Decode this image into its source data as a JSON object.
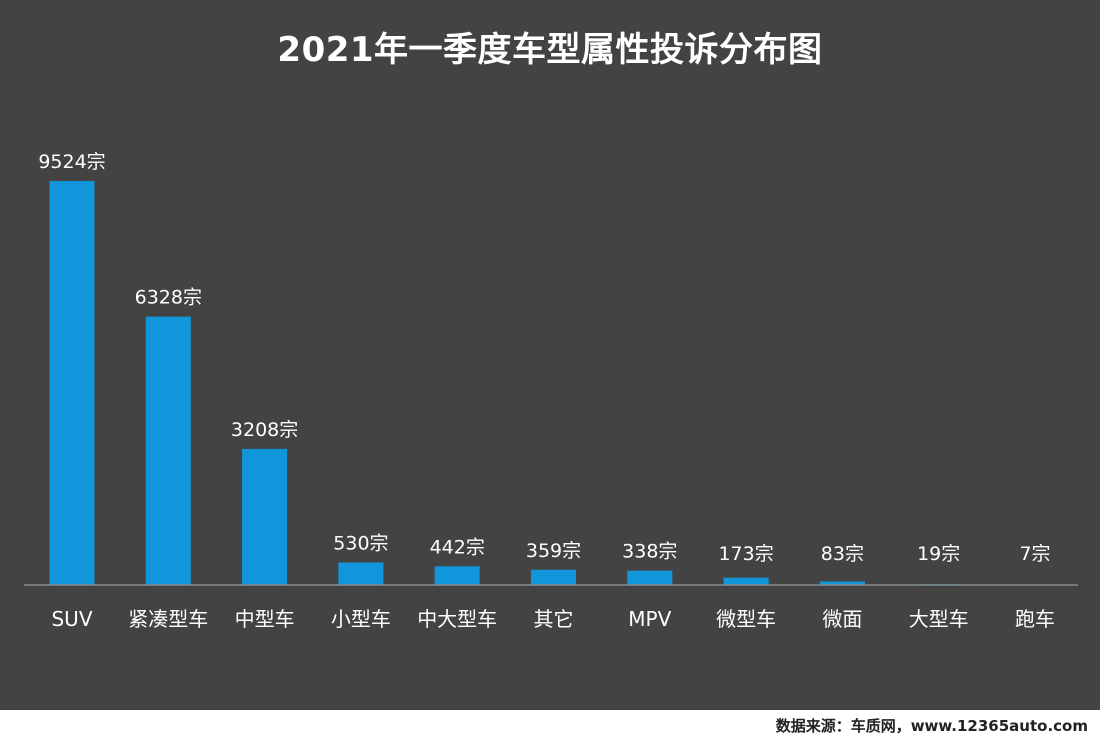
{
  "chart_data": {
    "type": "bar",
    "title": "2021年一季度车型属性投诉分布图",
    "categories": [
      "SUV",
      "紧凑型车",
      "中型车",
      "小型车",
      "中大型车",
      "其它",
      "MPV",
      "微型车",
      "微面",
      "大型车",
      "跑车"
    ],
    "values": [
      9524,
      6328,
      3208,
      530,
      442,
      359,
      338,
      173,
      83,
      19,
      7
    ],
    "value_labels": [
      "9524宗",
      "6328宗",
      "3208宗",
      "530宗",
      "442宗",
      "359宗",
      "338宗",
      "173宗",
      "83宗",
      "19宗",
      "7宗"
    ],
    "xlabel": "",
    "ylabel": "",
    "ylim": [
      0,
      9524
    ],
    "grid": false,
    "bar_color": "#1296db",
    "background_color": "#434343"
  },
  "footer": {
    "source": "数据来源：车质网，www.12365auto.com"
  }
}
